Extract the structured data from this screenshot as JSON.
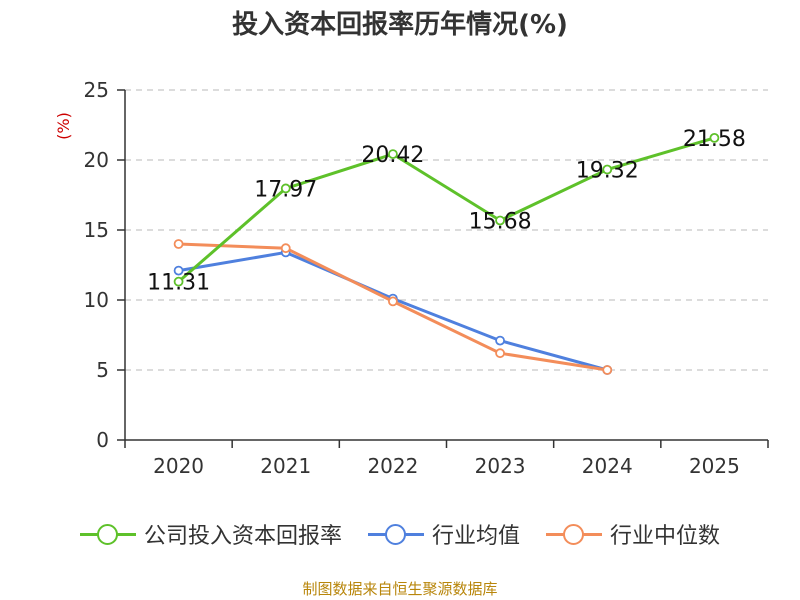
{
  "title": "投入资本回报率历年情况(%)",
  "footer": "制图数据来自恒生聚源数据库",
  "chart_data": {
    "type": "line",
    "title": "投入资本回报率历年情况(%)",
    "xlabel": "",
    "ylabel": "(%)",
    "categories": [
      "2020",
      "2021",
      "2022",
      "2023",
      "2024",
      "2025"
    ],
    "ylim": [
      0,
      25
    ],
    "yticks": [
      0,
      5,
      10,
      15,
      20,
      25
    ],
    "grid": true,
    "legend_position": "bottom",
    "series": [
      {
        "name": "公司投入资本回报率",
        "color": "#5ec12a",
        "values": [
          11.31,
          17.97,
          20.42,
          15.68,
          19.32,
          21.58
        ],
        "labels": [
          "11.31",
          "17.97",
          "20.42",
          "15.68",
          "19.32",
          "21.58"
        ]
      },
      {
        "name": "行业均值",
        "color": "#4f80de",
        "values": [
          12.1,
          13.4,
          10.1,
          7.1,
          5.0,
          null
        ]
      },
      {
        "name": "行业中位数",
        "color": "#f38d5a",
        "values": [
          14.0,
          13.7,
          9.9,
          6.2,
          5.0,
          null
        ]
      }
    ]
  }
}
